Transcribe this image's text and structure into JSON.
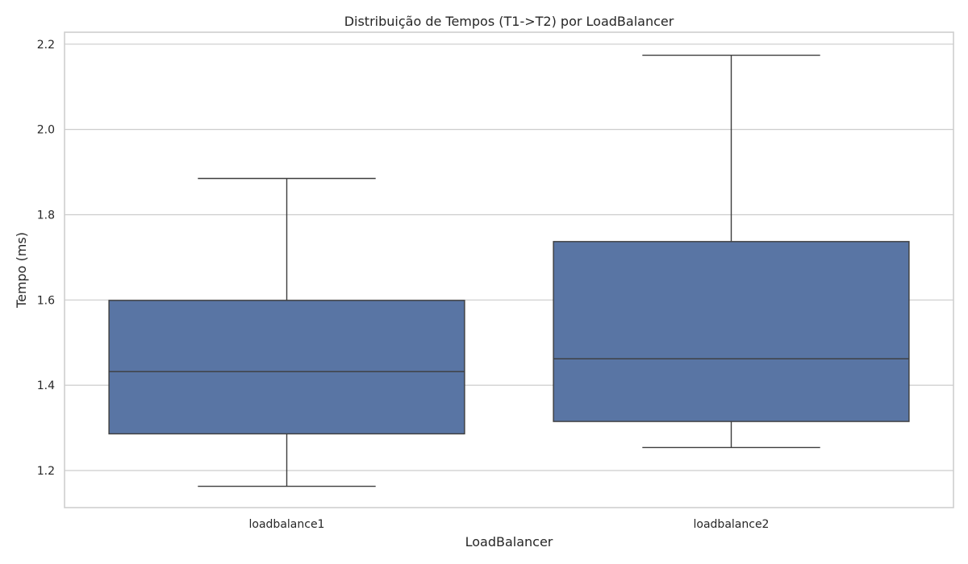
{
  "chart_data": {
    "type": "box",
    "title": "Distribuição de Tempos (T1->T2) por LoadBalancer",
    "xlabel": "LoadBalancer",
    "ylabel": "Tempo (ms)",
    "ylim": [
      1.113,
      2.228
    ],
    "yticks": [
      1.2,
      1.4,
      1.6,
      1.8,
      2.0,
      2.2
    ],
    "ytick_labels": [
      "1.2",
      "1.4",
      "1.6",
      "1.8",
      "2.0",
      "2.2"
    ],
    "categories": [
      "loadbalance1",
      "loadbalance2"
    ],
    "boxes": [
      {
        "category": "loadbalance1",
        "whisker_low": 1.163,
        "q1": 1.286,
        "median": 1.432,
        "q3": 1.599,
        "whisker_high": 1.885
      },
      {
        "category": "loadbalance2",
        "whisker_low": 1.254,
        "q1": 1.315,
        "median": 1.462,
        "q3": 1.737,
        "whisker_high": 2.174
      }
    ],
    "grid": true,
    "box_color": "#5975a4",
    "line_color": "#3d3d3d",
    "grid_color": "#cccccc"
  }
}
